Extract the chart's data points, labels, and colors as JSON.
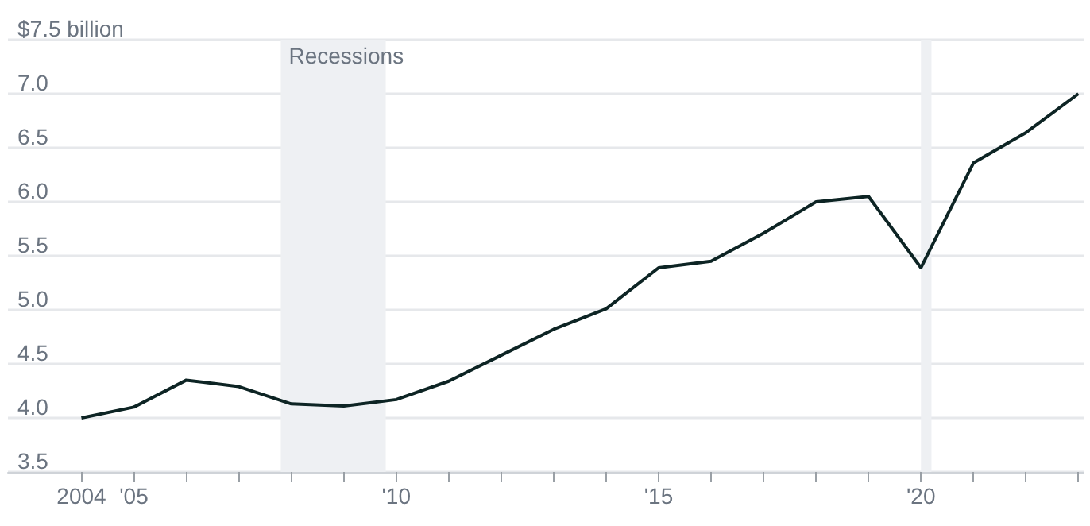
{
  "chart_data": {
    "type": "line",
    "x": [
      2004,
      2005,
      2006,
      2007,
      2008,
      2009,
      2010,
      2011,
      2012,
      2013,
      2014,
      2015,
      2016,
      2017,
      2018,
      2019,
      2020,
      2021,
      2022,
      2023
    ],
    "series": [
      {
        "color": "#0d2424",
        "values": [
          4.0,
          4.1,
          4.35,
          4.29,
          4.13,
          4.11,
          4.17,
          4.34,
          4.58,
          4.82,
          5.01,
          5.39,
          5.45,
          5.71,
          6.0,
          6.05,
          5.39,
          6.36,
          6.64,
          7.0
        ]
      }
    ],
    "xlim": [
      2002.6,
      2023.1
    ],
    "xticks": [
      {
        "value": 2004,
        "label": "2004"
      },
      {
        "value": 2005,
        "label": "'05"
      },
      {
        "value": 2006,
        "label": null
      },
      {
        "value": 2007,
        "label": null
      },
      {
        "value": 2008,
        "label": null
      },
      {
        "value": 2009,
        "label": null
      },
      {
        "value": 2010,
        "label": "'10"
      },
      {
        "value": 2011,
        "label": null
      },
      {
        "value": 2012,
        "label": null
      },
      {
        "value": 2013,
        "label": null
      },
      {
        "value": 2014,
        "label": null
      },
      {
        "value": 2015,
        "label": "'15"
      },
      {
        "value": 2016,
        "label": null
      },
      {
        "value": 2017,
        "label": null
      },
      {
        "value": 2018,
        "label": null
      },
      {
        "value": 2019,
        "label": null
      },
      {
        "value": 2020,
        "label": "'20"
      },
      {
        "value": 2021,
        "label": null
      },
      {
        "value": 2022,
        "label": null
      },
      {
        "value": 2023,
        "label": null
      }
    ],
    "ylim": [
      3.5,
      7.5
    ],
    "yticks": [
      3.5,
      {
        "value": 4,
        "label": "4.0"
      },
      4.5,
      {
        "value": 5,
        "label": "5.0"
      },
      5.5,
      {
        "value": 6,
        "label": "6.0"
      },
      6.5,
      {
        "value": 7,
        "label": "7.0"
      },
      {
        "value": 7.5,
        "label": "$7.5 billion"
      }
    ],
    "grid": "y",
    "bands": [
      {
        "axis": "x",
        "from": 2007.8,
        "to": 2009.8,
        "label": "Recessions",
        "color": "#eef0f3"
      },
      {
        "axis": "x",
        "from": 2020.0,
        "to": 2020.2,
        "label": null,
        "color": "#eef0f3"
      }
    ],
    "line_style": "solid",
    "marker": "none"
  }
}
